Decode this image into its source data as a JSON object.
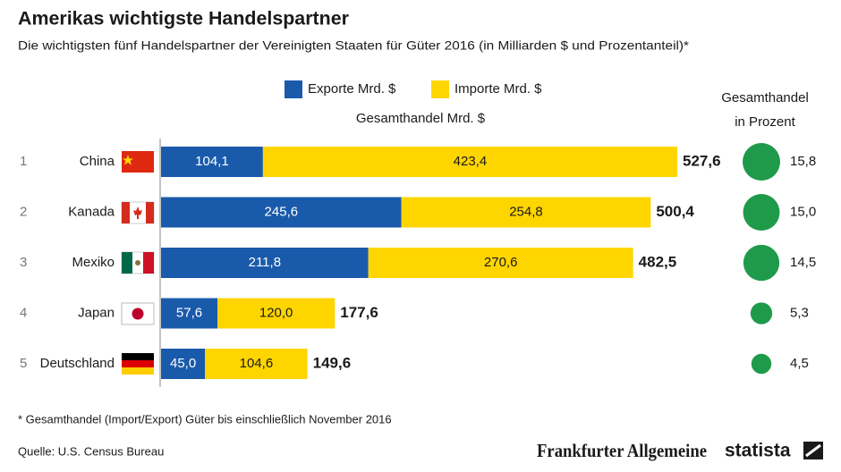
{
  "chart_data": {
    "type": "stacked-bar",
    "title": "Amerikas wichtigste Handelspartner",
    "subtitle": "Die wichtigsten fünf Handelspartner der Vereinigten Staaten für Güter 2016 (in Milliarden $ und Prozentanteil)*",
    "axis_label": "Gesamthandel Mrd. $",
    "ranks": [
      "1",
      "2",
      "3",
      "4",
      "5"
    ],
    "categories": [
      "China",
      "Kanada",
      "Mexiko",
      "Japan",
      "Deutschland"
    ],
    "series": [
      {
        "name": "Exporte Mrd. $",
        "color": "#1a5aab",
        "values": [
          104.1,
          245.6,
          211.8,
          57.6,
          45.0
        ],
        "value_labels": [
          "104,1",
          "245,6",
          "211,8",
          "57,6",
          "45,0"
        ]
      },
      {
        "name": "Importe Mrd. $",
        "color": "#ffd500",
        "values": [
          423.4,
          254.8,
          270.6,
          120.0,
          104.6
        ],
        "value_labels": [
          "423,4",
          "254,8",
          "270,6",
          "120,0",
          "104,6"
        ]
      }
    ],
    "totals": [
      527.6,
      500.4,
      482.5,
      177.6,
      149.6
    ],
    "total_labels": [
      "527,6",
      "500,4",
      "482,5",
      "177,6",
      "149,6"
    ],
    "share": {
      "title_lines": [
        "Gesamthandel",
        "in Prozent"
      ],
      "color": "#1e9a4a",
      "values": [
        15.8,
        15.0,
        14.5,
        5.3,
        4.5
      ],
      "value_labels": [
        "15,8",
        "15,0",
        "14,5",
        "5,3",
        "4,5"
      ]
    },
    "footnote": "* Gesamthandel (Import/Export) Güter bis einschließlich November 2016",
    "source": "Quelle: U.S. Census Bureau",
    "logos": [
      "Frankfurter Allgemeine",
      "statista"
    ]
  }
}
